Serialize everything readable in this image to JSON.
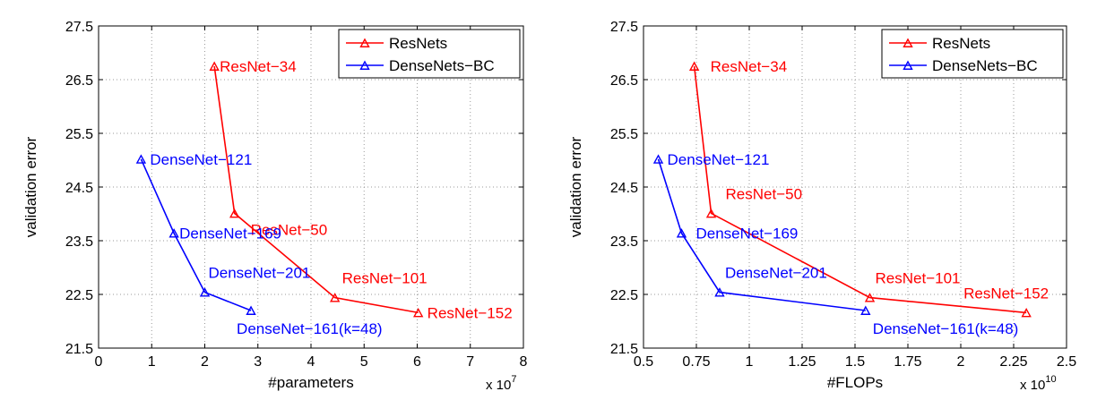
{
  "colors": {
    "resnets": "#ff0000",
    "densenets": "#0000ff",
    "grid": "#9a9a9a",
    "axis": "#000000"
  },
  "chart_data": [
    {
      "type": "line",
      "xlabel": "#parameters",
      "ylabel": "validation error",
      "x_exponent_base": "x 10",
      "x_exponent_power": "7",
      "xlim": [
        0,
        8
      ],
      "ylim": [
        21.5,
        27.5
      ],
      "xticks": [
        "0",
        "1",
        "2",
        "3",
        "4",
        "5",
        "6",
        "7",
        "8"
      ],
      "yticks": [
        "21.5",
        "22.5",
        "23.5",
        "24.5",
        "25.5",
        "26.5",
        "27.5"
      ],
      "grid": true,
      "legend": "top-right",
      "series": [
        {
          "name": "ResNets",
          "color": "#ff0000",
          "points": [
            {
              "label": "ResNet−34",
              "x": 2.18,
              "y": 26.75
            },
            {
              "label": "ResNet−50",
              "x": 2.56,
              "y": 24.01
            },
            {
              "label": "ResNet−101",
              "x": 4.45,
              "y": 22.44
            },
            {
              "label": "ResNet−152",
              "x": 6.02,
              "y": 22.16
            }
          ]
        },
        {
          "name": "DenseNets−BC",
          "color": "#0000ff",
          "points": [
            {
              "label": "DenseNet−121",
              "x": 0.8,
              "y": 25.02
            },
            {
              "label": "DenseNet−169",
              "x": 1.42,
              "y": 23.64
            },
            {
              "label": "DenseNet−201",
              "x": 2.0,
              "y": 22.54
            },
            {
              "label": "DenseNet−161(k=48)",
              "x": 2.87,
              "y": 22.2
            }
          ]
        }
      ]
    },
    {
      "type": "line",
      "xlabel": "#FLOPs",
      "ylabel": "validation error",
      "x_exponent_base": "x 10",
      "x_exponent_power": "10",
      "xlim": [
        0.5,
        2.5
      ],
      "ylim": [
        21.5,
        27.5
      ],
      "xticks": [
        "0.5",
        "0.75",
        "1",
        "1.25",
        "1.5",
        "1.75",
        "2",
        "2.25",
        "2.5"
      ],
      "yticks": [
        "21.5",
        "22.5",
        "23.5",
        "24.5",
        "25.5",
        "26.5",
        "27.5"
      ],
      "grid": true,
      "legend": "top-right",
      "series": [
        {
          "name": "ResNets",
          "color": "#ff0000",
          "points": [
            {
              "label": "ResNet−34",
              "x": 0.74,
              "y": 26.75
            },
            {
              "label": "ResNet−50",
              "x": 0.82,
              "y": 24.01
            },
            {
              "label": "ResNet−101",
              "x": 1.57,
              "y": 22.44
            },
            {
              "label": "ResNet−152",
              "x": 2.31,
              "y": 22.16
            }
          ]
        },
        {
          "name": "DenseNets−BC",
          "color": "#0000ff",
          "points": [
            {
              "label": "DenseNet−121",
              "x": 0.57,
              "y": 25.02
            },
            {
              "label": "DenseNet−169",
              "x": 0.68,
              "y": 23.64
            },
            {
              "label": "DenseNet−201",
              "x": 0.86,
              "y": 22.54
            },
            {
              "label": "DenseNet−161(k=48)",
              "x": 1.55,
              "y": 22.2
            }
          ]
        }
      ]
    }
  ]
}
